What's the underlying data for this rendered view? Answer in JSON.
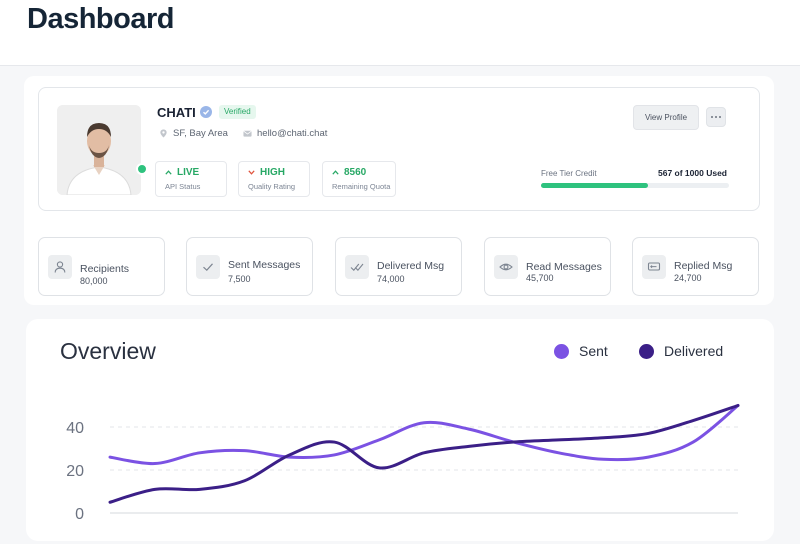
{
  "page": {
    "title": "Dashboard"
  },
  "profile": {
    "name": "CHATI",
    "verified_label": "Verified",
    "location": "SF, Bay Area",
    "email": "hello@chati.chat",
    "online": true,
    "view_profile_label": "View Profile",
    "stats": [
      {
        "value": "LIVE",
        "label": "API Status",
        "trend": "up",
        "color": "#27a865"
      },
      {
        "value": "HIGH",
        "label": "Quality Rating",
        "trend": "down",
        "color": "#27a865"
      },
      {
        "value": "8560",
        "label": "Remaining Quota",
        "trend": "up",
        "color": "#27a865"
      }
    ],
    "credit": {
      "label": "Free Tier Credit",
      "used_text": "567 of 1000 Used",
      "used": 567,
      "total": 1000
    }
  },
  "metrics": [
    {
      "label": "Recipients",
      "value": "80,000",
      "icon": "user-icon"
    },
    {
      "label": "Sent Messages",
      "value": "7,500",
      "icon": "check-icon"
    },
    {
      "label": "Delivered  Msg",
      "value": "74,000",
      "icon": "double-check-icon"
    },
    {
      "label": "Read Messages",
      "value": "45,700",
      "icon": "eye-icon"
    },
    {
      "label": "Replied Msg",
      "value": "24,700",
      "icon": "reply-icon"
    }
  ],
  "overview": {
    "title": "Overview"
  },
  "chart_data": {
    "type": "line",
    "x": [
      0,
      1,
      2,
      3,
      4,
      5,
      6,
      7,
      8,
      9,
      10,
      11,
      12,
      13,
      14
    ],
    "series": [
      {
        "name": "Sent",
        "color": "#7b52e3",
        "values": [
          26,
          23,
          28,
          29,
          26,
          27,
          34,
          42,
          39,
          33,
          28,
          25,
          26,
          33,
          50
        ]
      },
      {
        "name": "Delivered",
        "color": "#3b1f87",
        "values": [
          5,
          11,
          11,
          15,
          27,
          33,
          21,
          28,
          31,
          33,
          34,
          35,
          37,
          43,
          50
        ]
      }
    ],
    "y_ticks": [
      0,
      20,
      40
    ],
    "ylim": [
      0,
      50
    ],
    "grid": true,
    "legend_position": "top-right"
  }
}
